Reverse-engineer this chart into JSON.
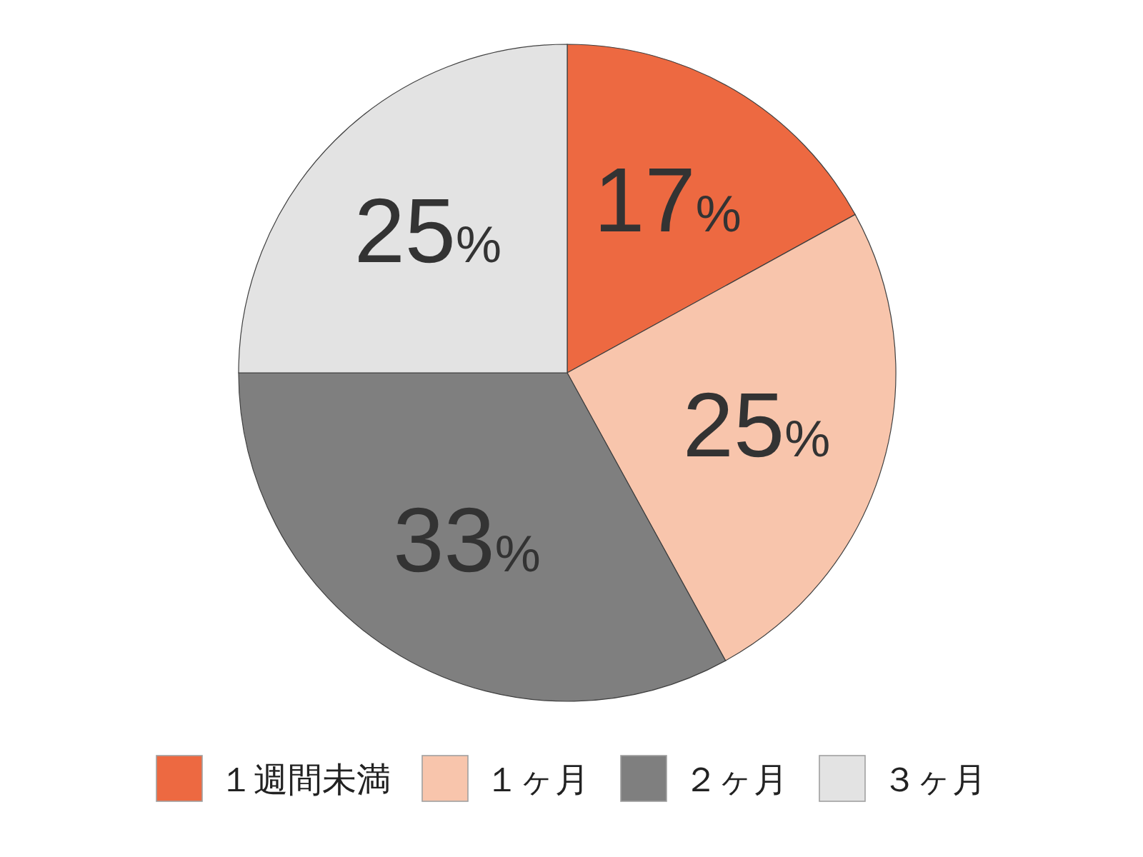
{
  "chart_data": {
    "type": "pie",
    "categories": [
      "１週間未満",
      "１ヶ月",
      "２ヶ月",
      "３ヶ月"
    ],
    "values": [
      17,
      25,
      33,
      25
    ],
    "colors": [
      "#ed6941",
      "#f8c5ac",
      "#7f7f7f",
      "#e3e3e3"
    ],
    "value_labels": [
      "17%",
      "25%",
      "33%",
      "25%"
    ],
    "legend": "bottom"
  }
}
